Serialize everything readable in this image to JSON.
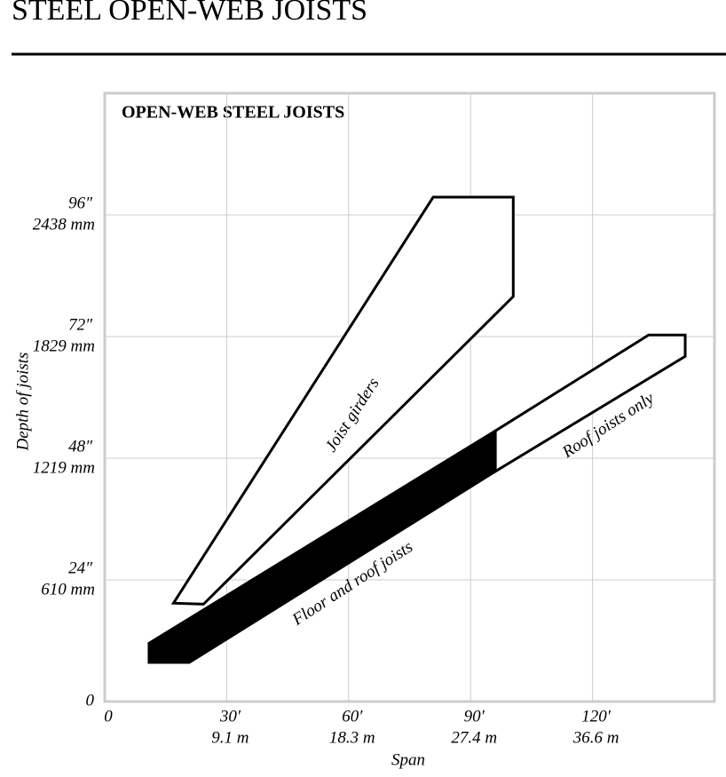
{
  "header": {
    "title": "STEEL OPEN-WEB JOISTS"
  },
  "chart_data": {
    "type": "polygon",
    "title": "OPEN-WEB STEEL JOISTS",
    "xlabel": "Span",
    "ylabel": "Depth of joists",
    "xlim": [
      0,
      150
    ],
    "ylim": [
      0,
      120
    ],
    "xticks": [
      0,
      {
        "value": 30,
        "label": "30′",
        "metric": "9.1 m"
      },
      {
        "value": 60,
        "label": "60′",
        "metric": "18.3 m"
      },
      {
        "value": 90,
        "label": "90′",
        "metric": "27.4 m"
      },
      {
        "value": 120,
        "label": "120′",
        "metric": "36.6 m"
      }
    ],
    "yticks": [
      0,
      {
        "value": 24,
        "label": "24″",
        "metric": "610 mm"
      },
      {
        "value": 48,
        "label": "48″",
        "metric": "1219 mm"
      },
      {
        "value": 72,
        "label": "72″",
        "metric": "1829 mm"
      },
      {
        "value": 96,
        "label": "96″",
        "metric": "2438 mm"
      }
    ],
    "grid": true,
    "series": [
      {
        "name": "Joist girders",
        "color": "#ffffff",
        "x": [
          16.9,
          80.8,
          100.5,
          100.5,
          24.3
        ],
        "values": [
          19.4,
          99.5,
          99.5,
          79.9,
          19.2
        ]
      },
      {
        "name": "Floor and roof joists",
        "color": "#000000",
        "x": [
          10.9,
          96.1,
          96.1,
          20.8,
          10.9
        ],
        "values": [
          11.5,
          53.4,
          45.4,
          7.7,
          7.7
        ]
      },
      {
        "name": "Roof joists only",
        "color": "#ffffff",
        "x": [
          96.1,
          133.8,
          142.8,
          142.8,
          96.1
        ],
        "values": [
          53.4,
          72.3,
          72.3,
          68.1,
          45.4
        ]
      }
    ]
  }
}
